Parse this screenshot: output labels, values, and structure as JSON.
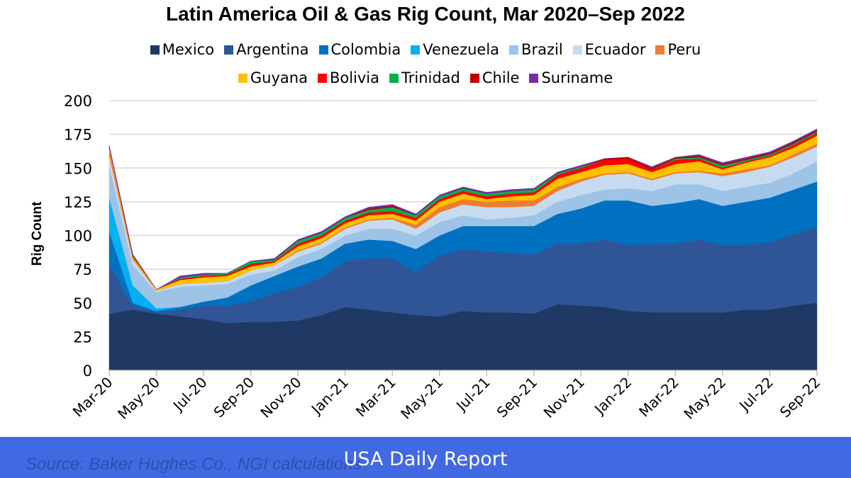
{
  "chart_data": {
    "type": "area",
    "stacked": true,
    "title": "Latin America Oil & Gas Rig Count, Mar 2020–Sep 2022",
    "xlabel": "",
    "ylabel": "Rig Count",
    "ylim": [
      0,
      200
    ],
    "yticks": [
      0,
      25,
      50,
      75,
      100,
      125,
      150,
      175,
      200
    ],
    "grid": true,
    "legend_position": "top",
    "x": [
      "Mar-20",
      "Apr-20",
      "May-20",
      "Jun-20",
      "Jul-20",
      "Aug-20",
      "Sep-20",
      "Oct-20",
      "Nov-20",
      "Dec-20",
      "Jan-21",
      "Feb-21",
      "Mar-21",
      "Apr-21",
      "May-21",
      "Jun-21",
      "Jul-21",
      "Aug-21",
      "Sep-21",
      "Oct-21",
      "Nov-21",
      "Dec-21",
      "Jan-22",
      "Feb-22",
      "Mar-22",
      "Apr-22",
      "May-22",
      "Jun-22",
      "Jul-22",
      "Aug-22",
      "Sep-22"
    ],
    "xtick_labels": [
      "Mar-20",
      "May-20",
      "Jul-20",
      "Sep-20",
      "Nov-20",
      "Jan-21",
      "Mar-21",
      "May-21",
      "Jul-21",
      "Sep-21",
      "Nov-21",
      "Jan-22",
      "Mar-22",
      "May-22",
      "Jul-22",
      "Sep-22"
    ],
    "series": [
      {
        "name": "Mexico",
        "color": "#1f3864",
        "values": [
          42,
          45,
          42,
          40,
          38,
          35,
          36,
          36,
          37,
          41,
          47,
          45,
          43,
          41,
          40,
          44,
          43,
          43,
          42,
          49,
          48,
          47,
          44,
          43,
          43,
          43,
          43,
          45,
          45,
          48,
          50
        ]
      },
      {
        "name": "Argentina",
        "color": "#2f5597",
        "values": [
          36,
          3,
          1,
          5,
          10,
          13,
          15,
          21,
          25,
          28,
          34,
          38,
          40,
          32,
          45,
          46,
          45,
          44,
          44,
          45,
          46,
          50,
          49,
          51,
          51,
          54,
          50,
          48,
          50,
          53,
          56
        ]
      },
      {
        "name": "Colombia",
        "color": "#0070c0",
        "values": [
          25,
          2,
          1,
          2,
          3,
          6,
          12,
          13,
          15,
          14,
          13,
          14,
          13,
          17,
          15,
          17,
          19,
          20,
          21,
          22,
          26,
          29,
          33,
          28,
          30,
          30,
          29,
          32,
          33,
          33,
          34
        ]
      },
      {
        "name": "Venezuela",
        "color": "#00b0f0",
        "values": [
          25,
          13,
          2,
          0,
          0,
          0,
          0,
          0,
          0,
          0,
          0,
          0,
          0,
          0,
          0,
          0,
          0,
          0,
          0,
          0,
          0,
          0,
          0,
          0,
          0,
          0,
          0,
          0,
          0,
          0,
          0
        ]
      },
      {
        "name": "Brazil",
        "color": "#9dc3e6",
        "values": [
          24,
          15,
          12,
          15,
          12,
          10,
          8,
          4,
          7,
          7,
          6,
          8,
          9,
          10,
          10,
          8,
          5,
          6,
          8,
          9,
          10,
          8,
          9,
          11,
          14,
          11,
          11,
          11,
          11,
          12,
          15
        ]
      },
      {
        "name": "Ecuador",
        "color": "#c6dbf0",
        "values": [
          7,
          4,
          1,
          2,
          2,
          2,
          3,
          4,
          4,
          4,
          5,
          6,
          7,
          5,
          7,
          8,
          9,
          8,
          7,
          8,
          10,
          11,
          11,
          8,
          8,
          9,
          11,
          11,
          12,
          12,
          11
        ]
      },
      {
        "name": "Peru",
        "color": "#ed7d31",
        "values": [
          4,
          1,
          0,
          0,
          0,
          0,
          0,
          0,
          1,
          1,
          1,
          1,
          1,
          3,
          4,
          4,
          4,
          5,
          4,
          3,
          2,
          1,
          1,
          1,
          1,
          1,
          2,
          2,
          1,
          2,
          2
        ]
      },
      {
        "name": "Guyana",
        "color": "#ffc000",
        "values": [
          2,
          1,
          1,
          3,
          4,
          4,
          3,
          2,
          3,
          3,
          3,
          3,
          3,
          3,
          4,
          4,
          2,
          3,
          4,
          6,
          5,
          6,
          6,
          5,
          6,
          7,
          3,
          5,
          6,
          5,
          6
        ]
      },
      {
        "name": "Bolivia",
        "color": "#ff0000",
        "values": [
          1,
          1,
          0,
          1,
          1,
          1,
          2,
          1,
          2,
          2,
          2,
          2,
          2,
          2,
          2,
          2,
          2,
          2,
          2,
          3,
          3,
          4,
          4,
          2,
          3,
          2,
          1,
          1,
          1,
          2,
          2
        ]
      },
      {
        "name": "Trinidad",
        "color": "#00b050",
        "values": [
          0,
          1,
          0,
          1,
          1,
          1,
          2,
          1,
          2,
          2,
          2,
          2,
          3,
          2,
          2,
          2,
          2,
          2,
          2,
          1,
          1,
          0,
          0,
          0,
          1,
          1,
          2,
          1,
          1,
          1,
          1
        ]
      },
      {
        "name": "Chile",
        "color": "#c00000",
        "values": [
          0,
          0,
          0,
          0,
          0,
          0,
          0,
          0,
          0,
          0,
          0,
          1,
          1,
          0,
          0,
          0,
          0,
          0,
          0,
          0,
          0,
          1,
          1,
          1,
          1,
          1,
          1,
          1,
          1,
          1,
          1
        ]
      },
      {
        "name": "Suriname",
        "color": "#7030a0",
        "values": [
          1,
          0,
          0,
          1,
          1,
          0,
          0,
          1,
          1,
          1,
          1,
          1,
          1,
          1,
          1,
          1,
          1,
          1,
          1,
          1,
          1,
          0,
          0,
          1,
          0,
          1,
          1,
          1,
          1,
          1,
          1
        ]
      }
    ],
    "source": "Source: Baker Hughes Co., NGI calculations"
  },
  "banner": {
    "title": "USA Daily Report",
    "color": "#4169e1"
  }
}
